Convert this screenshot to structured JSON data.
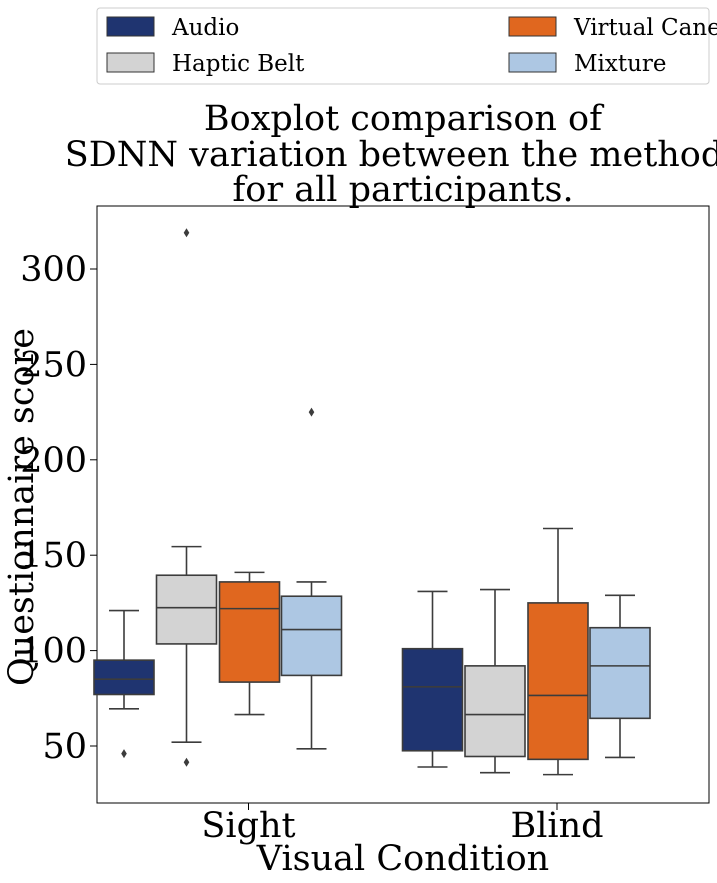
{
  "chart_data": {
    "type": "boxplot",
    "title_lines": [
      "Boxplot comparison of",
      "SDNN variation between the methods",
      "for all participants."
    ],
    "xlabel": "Visual Condition",
    "ylabel": "Questionnaire score",
    "categories": [
      "Sight",
      "Blind"
    ],
    "ylim": [
      20,
      333
    ],
    "yticks": [
      50,
      100,
      150,
      200,
      250,
      300
    ],
    "ytick_labels": [
      "50",
      "100",
      "150",
      "200",
      "250",
      "300"
    ],
    "legend": {
      "position": "top",
      "entries": [
        {
          "label": "Audio",
          "color": "#1f3470"
        },
        {
          "label": "Haptic Belt",
          "color": "#d3d3d3"
        },
        {
          "label": "Virtual Cane",
          "color": "#e0671f"
        },
        {
          "label": "Mixture",
          "color": "#adc7e3"
        }
      ]
    },
    "series": [
      {
        "name": "Audio",
        "color": "#1f3470",
        "boxes": [
          {
            "category": "Sight",
            "whisker_low": 69.5,
            "q1": 77,
            "median": 85,
            "q3": 95,
            "whisker_high": 121,
            "outliers": [
              46
            ]
          },
          {
            "category": "Blind",
            "whisker_low": 39,
            "q1": 47.5,
            "median": 81,
            "q3": 101,
            "whisker_high": 131,
            "outliers": []
          }
        ]
      },
      {
        "name": "Haptic Belt",
        "color": "#d3d3d3",
        "boxes": [
          {
            "category": "Sight",
            "whisker_low": 52,
            "q1": 103.5,
            "median": 122.5,
            "q3": 139.5,
            "whisker_high": 154.5,
            "outliers": [
              319,
              41.5
            ]
          },
          {
            "category": "Blind",
            "whisker_low": 36,
            "q1": 44.5,
            "median": 66.5,
            "q3": 92,
            "whisker_high": 132,
            "outliers": []
          }
        ]
      },
      {
        "name": "Virtual Cane",
        "color": "#e0671f",
        "boxes": [
          {
            "category": "Sight",
            "whisker_low": 66.5,
            "q1": 83.5,
            "median": 122,
            "q3": 136,
            "whisker_high": 141,
            "outliers": []
          },
          {
            "category": "Blind",
            "whisker_low": 35,
            "q1": 43,
            "median": 76.5,
            "q3": 125,
            "whisker_high": 164,
            "outliers": []
          }
        ]
      },
      {
        "name": "Mixture",
        "color": "#adc7e3",
        "boxes": [
          {
            "category": "Sight",
            "whisker_low": 48.5,
            "q1": 87,
            "median": 111,
            "q3": 128.5,
            "whisker_high": 136,
            "outliers": [
              225
            ]
          },
          {
            "category": "Blind",
            "whisker_low": 44,
            "q1": 64.5,
            "median": 92,
            "q3": 112,
            "whisker_high": 129,
            "outliers": []
          }
        ]
      }
    ]
  }
}
